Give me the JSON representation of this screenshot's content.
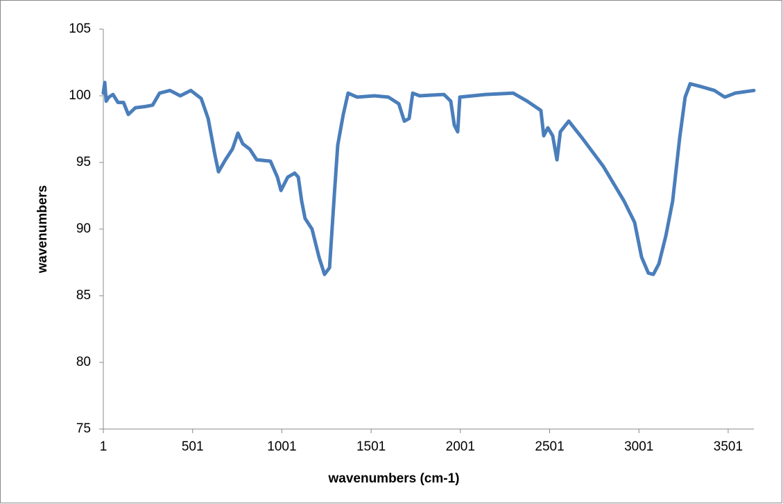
{
  "chart_data": {
    "type": "line",
    "xlabel": "wavenumbers (cm-1)",
    "ylabel": "wavenumbers",
    "x": [
      1,
      9,
      17,
      32,
      55,
      83,
      114,
      141,
      180,
      238,
      277,
      316,
      374,
      432,
      491,
      549,
      588,
      627,
      646,
      685,
      724,
      755,
      782,
      821,
      860,
      937,
      976,
      996,
      1034,
      1073,
      1093,
      1112,
      1131,
      1170,
      1209,
      1240,
      1268,
      1295,
      1314,
      1345,
      1372,
      1423,
      1520,
      1598,
      1656,
      1687,
      1714,
      1734,
      1773,
      1909,
      1947,
      1967,
      1986,
      1998,
      2142,
      2297,
      2375,
      2452,
      2468,
      2491,
      2518,
      2542,
      2561,
      2608,
      2685,
      2802,
      2918,
      2977,
      3016,
      3054,
      3082,
      3113,
      3152,
      3190,
      3229,
      3260,
      3288,
      3346,
      3424,
      3482,
      3540,
      3645
    ],
    "series": [
      {
        "name": "wavenumbers",
        "color": "#4a7ebb",
        "values": [
          100.2,
          101,
          99.6,
          99.9,
          100.1,
          99.5,
          99.5,
          98.6,
          99.1,
          99.2,
          99.3,
          100.2,
          100.4,
          100,
          100.4,
          99.8,
          98.3,
          95.5,
          94.3,
          95.2,
          96.0,
          97.2,
          96.4,
          96.0,
          95.2,
          95.1,
          93.9,
          92.9,
          93.9,
          94.2,
          93.9,
          92.1,
          90.8,
          90.0,
          87.9,
          86.6,
          87.1,
          92.6,
          96.3,
          98.6,
          100.2,
          99.9,
          100,
          99.9,
          99.4,
          98.1,
          98.3,
          100.2,
          100,
          100.1,
          99.6,
          97.8,
          97.3,
          99.9,
          100.1,
          100.2,
          99.6,
          98.9,
          97.0,
          97.6,
          97.0,
          95.2,
          97.3,
          98.1,
          96.8,
          94.7,
          92.1,
          90.5,
          87.9,
          86.7,
          86.6,
          87.4,
          89.5,
          92.1,
          96.8,
          99.9,
          100.9,
          100.7,
          100.4,
          99.9,
          100.2,
          100.4
        ]
      }
    ],
    "xlim": [
      1,
      3645
    ],
    "xticks": [
      1,
      501,
      1001,
      1501,
      2001,
      2501,
      3001,
      3501
    ],
    "ylim": [
      75,
      105
    ],
    "yticks": [
      75,
      80,
      85,
      90,
      95,
      100,
      105
    ],
    "grid": false
  }
}
